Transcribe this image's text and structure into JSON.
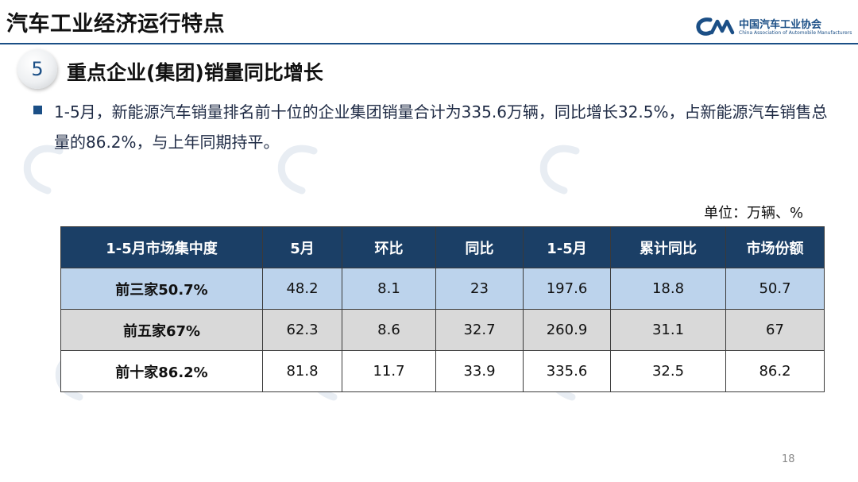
{
  "header": {
    "title": "汽车工业经济运行特点",
    "logo_cn": "中国汽车工业协会",
    "logo_en": "China Association of Automobile Manufacturers",
    "accent_color": "#1b4f86"
  },
  "section": {
    "number": "5",
    "title": "重点企业(集团)销量同比增长"
  },
  "bullet_text": "1-5月，新能源汽车销量排名前十位的企业集团销量合计为335.6万辆，同比增长32.5%，占新能源汽车销售总量的86.2%，与上年同期持平。",
  "unit": "单位：万辆、%",
  "table": {
    "headers": [
      "1-5月市场集中度",
      "5月",
      "环比",
      "同比",
      "1-5月",
      "累计同比",
      "市场份额"
    ],
    "rows": [
      [
        "前三家50.7%",
        "48.2",
        "8.1",
        "23",
        "197.6",
        "18.8",
        "50.7"
      ],
      [
        "前五家67%",
        "62.3",
        "8.6",
        "32.7",
        "260.9",
        "31.1",
        "67"
      ],
      [
        "前十家86.2%",
        "81.8",
        "11.7",
        "33.9",
        "335.6",
        "32.5",
        "86.2"
      ]
    ],
    "header_color": "#1b3f66",
    "row_colors": [
      "#bcd3ec",
      "#d9d9d9",
      "#ffffff"
    ]
  },
  "page_number": "18"
}
